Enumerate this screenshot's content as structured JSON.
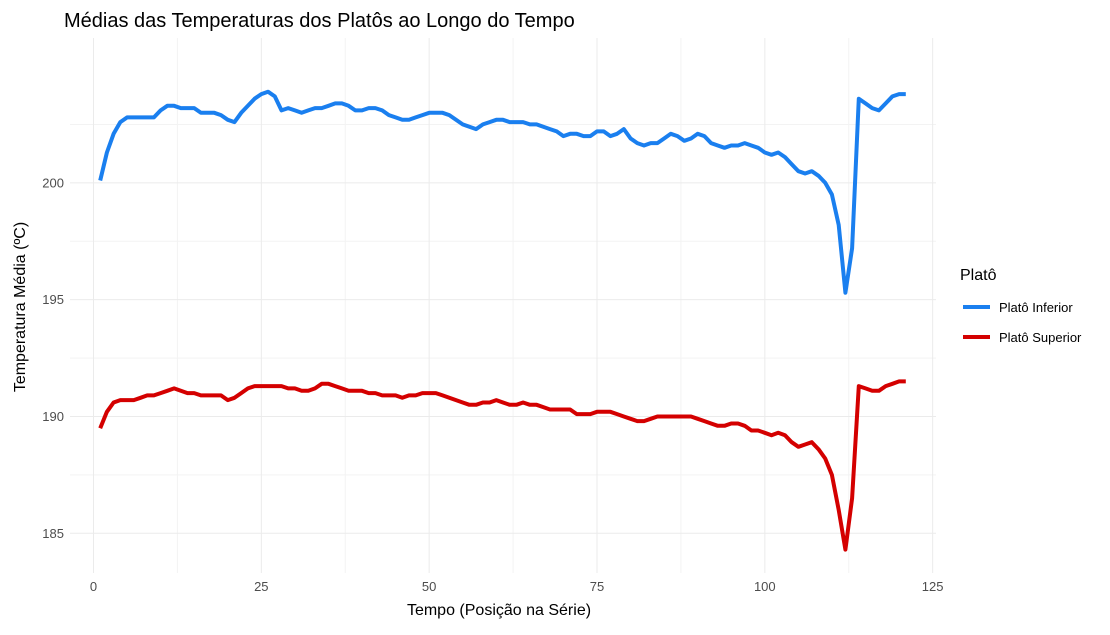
{
  "chart_data": {
    "type": "line",
    "title": "Médias das Temperaturas dos Platôs ao Longo do Tempo",
    "xlabel": "Tempo (Posição na Série)",
    "ylabel": "Temperatura Média (ºC)",
    "xlim": [
      -3.5,
      125.5
    ],
    "ylim": [
      183.3,
      206.2
    ],
    "x_ticks": [
      0,
      25,
      50,
      75,
      100,
      125
    ],
    "y_ticks": [
      185,
      190,
      195,
      200
    ],
    "grid": true,
    "legend": {
      "title": "Platô",
      "placement": "right"
    },
    "series": [
      {
        "name": "Platô Inferior",
        "color": "#1a7fef",
        "points": [
          [
            1,
            200.1
          ],
          [
            2,
            201.3
          ],
          [
            3,
            202.1
          ],
          [
            4,
            202.6
          ],
          [
            5,
            202.8
          ],
          [
            6,
            202.8
          ],
          [
            7,
            202.8
          ],
          [
            8,
            202.8
          ],
          [
            9,
            202.8
          ],
          [
            10,
            203.1
          ],
          [
            11,
            203.3
          ],
          [
            12,
            203.3
          ],
          [
            13,
            203.2
          ],
          [
            14,
            203.2
          ],
          [
            15,
            203.2
          ],
          [
            16,
            203.0
          ],
          [
            17,
            203.0
          ],
          [
            18,
            203.0
          ],
          [
            19,
            202.9
          ],
          [
            20,
            202.7
          ],
          [
            21,
            202.6
          ],
          [
            22,
            203.0
          ],
          [
            23,
            203.3
          ],
          [
            24,
            203.6
          ],
          [
            25,
            203.8
          ],
          [
            26,
            203.9
          ],
          [
            27,
            203.7
          ],
          [
            28,
            203.1
          ],
          [
            29,
            203.2
          ],
          [
            30,
            203.1
          ],
          [
            31,
            203.0
          ],
          [
            32,
            203.1
          ],
          [
            33,
            203.2
          ],
          [
            34,
            203.2
          ],
          [
            35,
            203.3
          ],
          [
            36,
            203.4
          ],
          [
            37,
            203.4
          ],
          [
            38,
            203.3
          ],
          [
            39,
            203.1
          ],
          [
            40,
            203.1
          ],
          [
            41,
            203.2
          ],
          [
            42,
            203.2
          ],
          [
            43,
            203.1
          ],
          [
            44,
            202.9
          ],
          [
            45,
            202.8
          ],
          [
            46,
            202.7
          ],
          [
            47,
            202.7
          ],
          [
            48,
            202.8
          ],
          [
            49,
            202.9
          ],
          [
            50,
            203.0
          ],
          [
            51,
            203.0
          ],
          [
            52,
            203.0
          ],
          [
            53,
            202.9
          ],
          [
            54,
            202.7
          ],
          [
            55,
            202.5
          ],
          [
            56,
            202.4
          ],
          [
            57,
            202.3
          ],
          [
            58,
            202.5
          ],
          [
            59,
            202.6
          ],
          [
            60,
            202.7
          ],
          [
            61,
            202.7
          ],
          [
            62,
            202.6
          ],
          [
            63,
            202.6
          ],
          [
            64,
            202.6
          ],
          [
            65,
            202.5
          ],
          [
            66,
            202.5
          ],
          [
            67,
            202.4
          ],
          [
            68,
            202.3
          ],
          [
            69,
            202.2
          ],
          [
            70,
            202.0
          ],
          [
            71,
            202.1
          ],
          [
            72,
            202.1
          ],
          [
            73,
            202.0
          ],
          [
            74,
            202.0
          ],
          [
            75,
            202.2
          ],
          [
            76,
            202.2
          ],
          [
            77,
            202.0
          ],
          [
            78,
            202.1
          ],
          [
            79,
            202.3
          ],
          [
            80,
            201.9
          ],
          [
            81,
            201.7
          ],
          [
            82,
            201.6
          ],
          [
            83,
            201.7
          ],
          [
            84,
            201.7
          ],
          [
            85,
            201.9
          ],
          [
            86,
            202.1
          ],
          [
            87,
            202.0
          ],
          [
            88,
            201.8
          ],
          [
            89,
            201.9
          ],
          [
            90,
            202.1
          ],
          [
            91,
            202.0
          ],
          [
            92,
            201.7
          ],
          [
            93,
            201.6
          ],
          [
            94,
            201.5
          ],
          [
            95,
            201.6
          ],
          [
            96,
            201.6
          ],
          [
            97,
            201.7
          ],
          [
            98,
            201.6
          ],
          [
            99,
            201.5
          ],
          [
            100,
            201.3
          ],
          [
            101,
            201.2
          ],
          [
            102,
            201.3
          ],
          [
            103,
            201.1
          ],
          [
            104,
            200.8
          ],
          [
            105,
            200.5
          ],
          [
            106,
            200.4
          ],
          [
            107,
            200.5
          ],
          [
            108,
            200.3
          ],
          [
            109,
            200.0
          ],
          [
            110,
            199.5
          ],
          [
            111,
            198.2
          ],
          [
            112,
            195.3
          ],
          [
            113,
            197.2
          ],
          [
            114,
            203.6
          ],
          [
            115,
            203.4
          ],
          [
            116,
            203.2
          ],
          [
            117,
            203.1
          ],
          [
            118,
            203.4
          ],
          [
            119,
            203.7
          ],
          [
            120,
            203.8
          ],
          [
            121,
            203.8
          ]
        ]
      },
      {
        "name": "Platô Superior",
        "color": "#d40000",
        "points": [
          [
            1,
            189.5
          ],
          [
            2,
            190.2
          ],
          [
            3,
            190.6
          ],
          [
            4,
            190.7
          ],
          [
            5,
            190.7
          ],
          [
            6,
            190.7
          ],
          [
            7,
            190.8
          ],
          [
            8,
            190.9
          ],
          [
            9,
            190.9
          ],
          [
            10,
            191.0
          ],
          [
            11,
            191.1
          ],
          [
            12,
            191.2
          ],
          [
            13,
            191.1
          ],
          [
            14,
            191.0
          ],
          [
            15,
            191.0
          ],
          [
            16,
            190.9
          ],
          [
            17,
            190.9
          ],
          [
            18,
            190.9
          ],
          [
            19,
            190.9
          ],
          [
            20,
            190.7
          ],
          [
            21,
            190.8
          ],
          [
            22,
            191.0
          ],
          [
            23,
            191.2
          ],
          [
            24,
            191.3
          ],
          [
            25,
            191.3
          ],
          [
            26,
            191.3
          ],
          [
            27,
            191.3
          ],
          [
            28,
            191.3
          ],
          [
            29,
            191.2
          ],
          [
            30,
            191.2
          ],
          [
            31,
            191.1
          ],
          [
            32,
            191.1
          ],
          [
            33,
            191.2
          ],
          [
            34,
            191.4
          ],
          [
            35,
            191.4
          ],
          [
            36,
            191.3
          ],
          [
            37,
            191.2
          ],
          [
            38,
            191.1
          ],
          [
            39,
            191.1
          ],
          [
            40,
            191.1
          ],
          [
            41,
            191.0
          ],
          [
            42,
            191.0
          ],
          [
            43,
            190.9
          ],
          [
            44,
            190.9
          ],
          [
            45,
            190.9
          ],
          [
            46,
            190.8
          ],
          [
            47,
            190.9
          ],
          [
            48,
            190.9
          ],
          [
            49,
            191.0
          ],
          [
            50,
            191.0
          ],
          [
            51,
            191.0
          ],
          [
            52,
            190.9
          ],
          [
            53,
            190.8
          ],
          [
            54,
            190.7
          ],
          [
            55,
            190.6
          ],
          [
            56,
            190.5
          ],
          [
            57,
            190.5
          ],
          [
            58,
            190.6
          ],
          [
            59,
            190.6
          ],
          [
            60,
            190.7
          ],
          [
            61,
            190.6
          ],
          [
            62,
            190.5
          ],
          [
            63,
            190.5
          ],
          [
            64,
            190.6
          ],
          [
            65,
            190.5
          ],
          [
            66,
            190.5
          ],
          [
            67,
            190.4
          ],
          [
            68,
            190.3
          ],
          [
            69,
            190.3
          ],
          [
            70,
            190.3
          ],
          [
            71,
            190.3
          ],
          [
            72,
            190.1
          ],
          [
            73,
            190.1
          ],
          [
            74,
            190.1
          ],
          [
            75,
            190.2
          ],
          [
            76,
            190.2
          ],
          [
            77,
            190.2
          ],
          [
            78,
            190.1
          ],
          [
            79,
            190.0
          ],
          [
            80,
            189.9
          ],
          [
            81,
            189.8
          ],
          [
            82,
            189.8
          ],
          [
            83,
            189.9
          ],
          [
            84,
            190.0
          ],
          [
            85,
            190.0
          ],
          [
            86,
            190.0
          ],
          [
            87,
            190.0
          ],
          [
            88,
            190.0
          ],
          [
            89,
            190.0
          ],
          [
            90,
            189.9
          ],
          [
            91,
            189.8
          ],
          [
            92,
            189.7
          ],
          [
            93,
            189.6
          ],
          [
            94,
            189.6
          ],
          [
            95,
            189.7
          ],
          [
            96,
            189.7
          ],
          [
            97,
            189.6
          ],
          [
            98,
            189.4
          ],
          [
            99,
            189.4
          ],
          [
            100,
            189.3
          ],
          [
            101,
            189.2
          ],
          [
            102,
            189.3
          ],
          [
            103,
            189.2
          ],
          [
            104,
            188.9
          ],
          [
            105,
            188.7
          ],
          [
            106,
            188.8
          ],
          [
            107,
            188.9
          ],
          [
            108,
            188.6
          ],
          [
            109,
            188.2
          ],
          [
            110,
            187.5
          ],
          [
            111,
            186.0
          ],
          [
            112,
            184.3
          ],
          [
            113,
            186.5
          ],
          [
            114,
            191.3
          ],
          [
            115,
            191.2
          ],
          [
            116,
            191.1
          ],
          [
            117,
            191.1
          ],
          [
            118,
            191.3
          ],
          [
            119,
            191.4
          ],
          [
            120,
            191.5
          ],
          [
            121,
            191.5
          ]
        ]
      }
    ]
  }
}
